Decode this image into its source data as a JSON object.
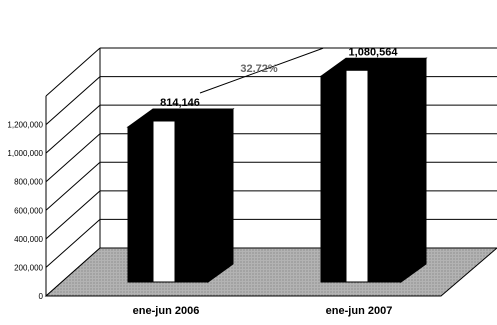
{
  "chart_data": {
    "type": "bar",
    "categories": [
      "ene-jun 2006",
      "ene-jun 2007"
    ],
    "values": [
      814146,
      1080564
    ],
    "value_labels": [
      "814,146",
      "1,080,564"
    ],
    "yticks": [
      "0",
      "200,000",
      "400,000",
      "600,000",
      "800,000",
      "1,000,000",
      "1,200,000"
    ],
    "ylim": [
      0,
      1400000
    ],
    "growth_label": "32.72%",
    "grid": true,
    "style": "3d-column",
    "colors": {
      "bar": "#000000",
      "bar_inner": "#ffffff",
      "floor": "#a6a6a6"
    }
  }
}
